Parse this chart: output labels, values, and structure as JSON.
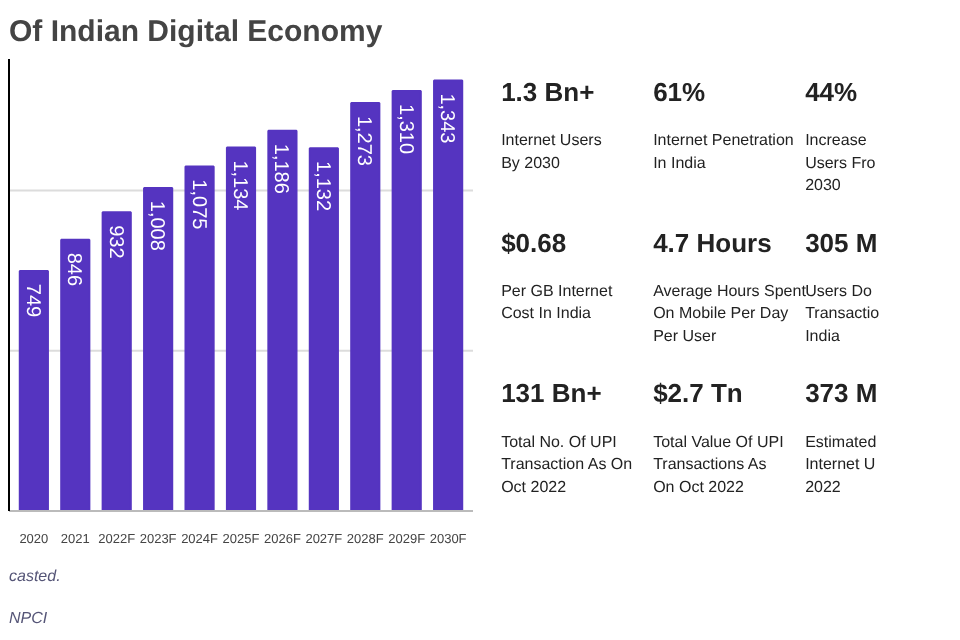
{
  "chart_data": [
    {
      "type": "bar",
      "title": "Of Indian Digital Economy",
      "categories": [
        "2020",
        "2021",
        "2022F",
        "2023F",
        "2024F",
        "2025F",
        "2026F",
        "2027F",
        "2028F",
        "2029F",
        "2030F"
      ],
      "values": [
        749,
        846,
        932,
        1008,
        1075,
        1134,
        1186,
        1132,
        1273,
        1310,
        1343
      ],
      "value_labels": [
        "749",
        "846",
        "932",
        "1,008",
        "1,075",
        "1,134",
        "1,186",
        "1,132",
        "1,273",
        "1,310",
        "1,343"
      ],
      "color": "#5534c0",
      "ref_lines": [
        {
          "axis": "y",
          "value": 500,
          "color": "#dcdcdc"
        },
        {
          "axis": "y",
          "value": 1000,
          "color": "#dcdcdc"
        }
      ],
      "annotations": [
        "NPCI",
        "casted."
      ]
    },
    {
      "type": "other",
      "annotations": [
        "1.3 Bn+",
        "Internet Users\nBy 2030",
        "61%",
        "Internet Penetration\nIn India",
        "44%",
        "Increase\nUsers Fro\n2030",
        "$0.68",
        "Per GB Internet\nCost In India",
        "4.7 Hours",
        "Average Hours Spent\nOn Mobile Per Day\nPer User",
        "305 M",
        "Users Do\nTransactio\nIndia",
        "131 Bn+",
        "Total No. Of UPI\nTransaction As On\nOct 2022",
        "$2.7 Tn",
        "Total Value Of UPI\nTransactions As\nOn Oct 2022",
        "373 M",
        "Estimated\nInternet U\n2022"
      ]
    }
  ]
}
